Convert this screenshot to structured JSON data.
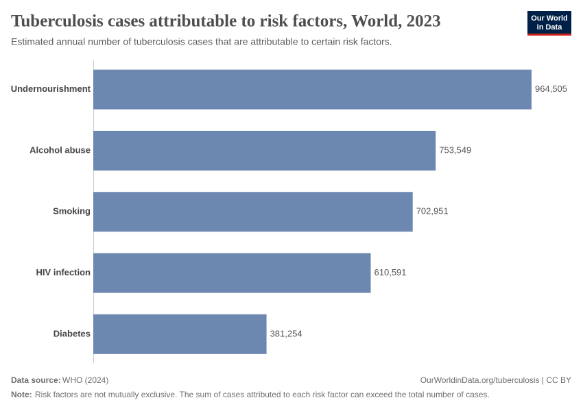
{
  "chart_data": {
    "type": "bar",
    "orientation": "horizontal",
    "title": "Tuberculosis cases attributable to risk factors, World, 2023",
    "subtitle": "Estimated annual number of tuberculosis cases that are attributable to certain risk factors.",
    "categories": [
      "Undernourishment",
      "Alcohol abuse",
      "Smoking",
      "HIV infection",
      "Diabetes"
    ],
    "values": [
      964505,
      753549,
      702951,
      610591,
      381254
    ],
    "value_labels": [
      "964,505",
      "753,549",
      "702,951",
      "610,591",
      "381,254"
    ],
    "color": "#6d88b0",
    "source_label": "Data source:",
    "source": "WHO (2024)",
    "credit": "OurWorldinData.org/tuberculosis | CC BY",
    "note_label": "Note:",
    "note": "Risk factors are not mutually exclusive. The sum of cases attributed to each risk factor can exceed the total number of cases.",
    "logo": [
      "Our World",
      "in Data"
    ]
  }
}
